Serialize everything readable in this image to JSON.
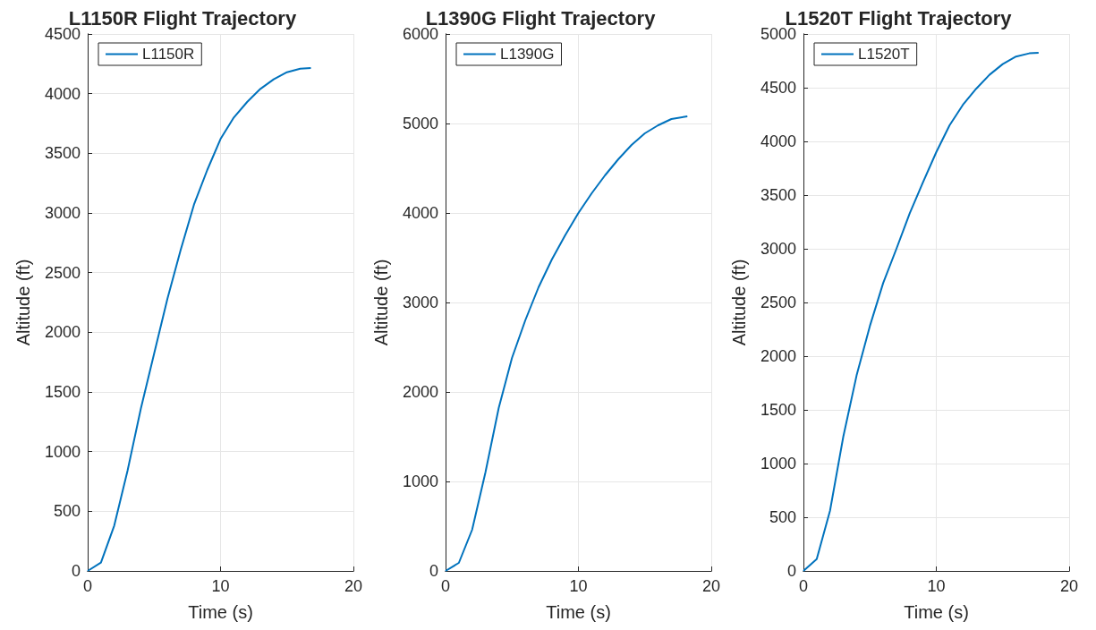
{
  "chart_data": [
    {
      "type": "line",
      "title": "L1150R Flight Trajectory",
      "xlabel": "Time (s)",
      "ylabel": "Altitude (ft)",
      "xlim": [
        0,
        20
      ],
      "xticks": [
        0,
        10,
        20
      ],
      "ylim": [
        0,
        4500
      ],
      "yticks": [
        0,
        500,
        1000,
        1500,
        2000,
        2500,
        3000,
        3500,
        4000,
        4500
      ],
      "grid": true,
      "legend": "top left",
      "marker": "none",
      "line_style": "solid",
      "series": [
        {
          "name": "L1150R",
          "color": "#0072bd",
          "x": [
            0,
            1,
            2,
            3,
            4,
            5,
            6,
            7,
            8,
            9,
            10,
            11,
            12,
            13,
            14,
            15,
            16,
            16.8
          ],
          "values": [
            0,
            70,
            380,
            840,
            1360,
            1820,
            2280,
            2690,
            3070,
            3360,
            3620,
            3800,
            3930,
            4040,
            4120,
            4180,
            4210,
            4215
          ]
        }
      ]
    },
    {
      "type": "line",
      "title": "L1390G Flight Trajectory",
      "xlabel": "Time (s)",
      "ylabel": "Altitude (ft)",
      "xlim": [
        0,
        20
      ],
      "xticks": [
        0,
        10,
        20
      ],
      "ylim": [
        0,
        6000
      ],
      "yticks": [
        0,
        1000,
        2000,
        3000,
        4000,
        5000,
        6000
      ],
      "grid": true,
      "legend": "top left",
      "marker": "none",
      "line_style": "solid",
      "series": [
        {
          "name": "L1390G",
          "color": "#0072bd",
          "x": [
            0,
            1,
            2,
            3,
            4,
            5,
            6,
            7,
            8,
            9,
            10,
            11,
            12,
            13,
            14,
            15,
            16,
            17,
            18.2
          ],
          "values": [
            0,
            90,
            460,
            1100,
            1820,
            2380,
            2800,
            3170,
            3480,
            3750,
            4000,
            4220,
            4420,
            4600,
            4760,
            4890,
            4980,
            5050,
            5080
          ]
        }
      ]
    },
    {
      "type": "line",
      "title": "L1520T Flight Trajectory",
      "xlabel": "Time (s)",
      "ylabel": "Altitude (ft)",
      "xlim": [
        0,
        20
      ],
      "xticks": [
        0,
        10,
        20
      ],
      "ylim": [
        0,
        5000
      ],
      "yticks": [
        0,
        500,
        1000,
        1500,
        2000,
        2500,
        3000,
        3500,
        4000,
        4500,
        5000
      ],
      "grid": true,
      "legend": "top left",
      "marker": "none",
      "line_style": "solid",
      "series": [
        {
          "name": "L1520T",
          "color": "#0072bd",
          "x": [
            0,
            1,
            2,
            3,
            4,
            5,
            6,
            7,
            8,
            9,
            10,
            11,
            12,
            13,
            14,
            15,
            16,
            17,
            17.7
          ],
          "values": [
            0,
            110,
            560,
            1250,
            1820,
            2280,
            2680,
            3000,
            3330,
            3620,
            3900,
            4150,
            4340,
            4490,
            4620,
            4720,
            4790,
            4820,
            4825
          ]
        }
      ]
    }
  ]
}
